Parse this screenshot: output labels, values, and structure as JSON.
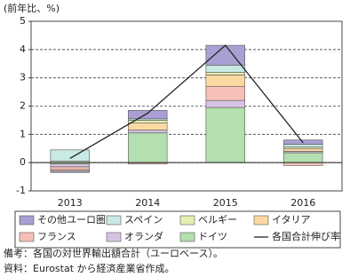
{
  "chart_data": {
    "type": "stacked-bar-line",
    "y_axis_label": "(前年比、%)",
    "categories": [
      "2013",
      "2014",
      "2015",
      "2016"
    ],
    "series": [
      {
        "name": "その他ユーロ圏",
        "color": "#a99fd3",
        "values": [
          -0.05,
          0.3,
          0.7,
          0.15
        ]
      },
      {
        "name": "スペイン",
        "color": "#c8e9e4",
        "values": [
          0.4,
          0.05,
          0.25,
          0.1
        ]
      },
      {
        "name": "ベルギー",
        "color": "#e4efb4",
        "values": [
          0.05,
          0.1,
          0.1,
          0.05
        ]
      },
      {
        "name": "イタリア",
        "color": "#fcd9a2",
        "values": [
          -0.05,
          0.25,
          0.4,
          0.1
        ]
      },
      {
        "name": "フランス",
        "color": "#f6bfb7",
        "values": [
          -0.1,
          -0.05,
          0.5,
          -0.1
        ]
      },
      {
        "name": "オランダ",
        "color": "#d6c3e3",
        "values": [
          -0.1,
          0.1,
          0.25,
          0.05
        ]
      },
      {
        "name": "ドイツ",
        "color": "#b4dfaf",
        "values": [
          -0.05,
          1.05,
          1.95,
          0.35
        ]
      }
    ],
    "line": {
      "name": "各国合計伸び率",
      "color": "#222222",
      "values": [
        0.15,
        1.75,
        4.15,
        0.7
      ]
    },
    "ylim": [
      -1,
      5
    ],
    "yticks": [
      -1,
      0,
      1,
      2,
      3,
      4,
      5
    ],
    "grid": true,
    "notes": [
      "備考：各国の対世界輸出額合計（ユーロベース）。",
      "資料：Eurostat から経済産業省作成。"
    ]
  }
}
